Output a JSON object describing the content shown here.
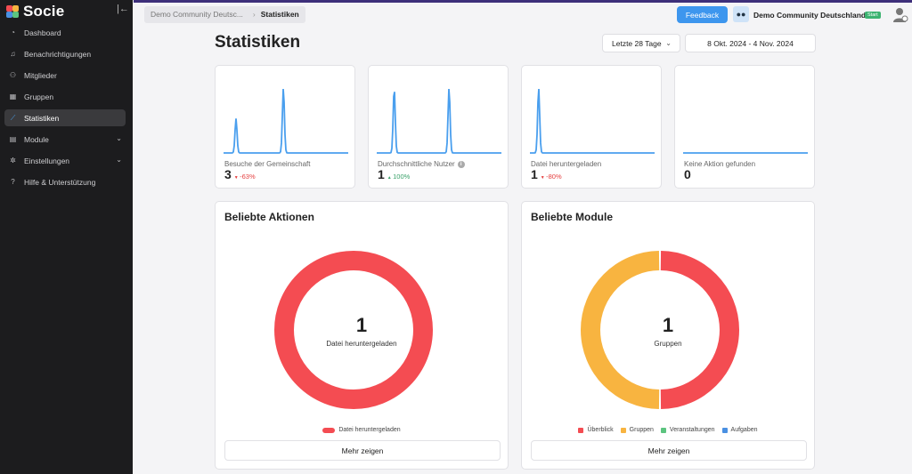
{
  "sidebar": {
    "app_name": "Socie",
    "items": [
      {
        "label": "Dashboard",
        "icon": "dashboard-icon",
        "active": false
      },
      {
        "label": "Benachrichtigungen",
        "icon": "bell-icon",
        "active": false
      },
      {
        "label": "Mitglieder",
        "icon": "users-icon",
        "active": false
      },
      {
        "label": "Gruppen",
        "icon": "groups-icon",
        "active": false
      },
      {
        "label": "Statistiken",
        "icon": "chart-icon",
        "active": true
      },
      {
        "label": "Module",
        "icon": "module-icon",
        "active": false,
        "expandable": true
      },
      {
        "label": "Einstellungen",
        "icon": "gear-icon",
        "active": false,
        "expandable": true
      },
      {
        "label": "Hilfe & Unterstützung",
        "icon": "help-icon",
        "active": false
      }
    ]
  },
  "header": {
    "breadcrumb": [
      "Demo Community Deutsc...",
      "Statistiken"
    ],
    "feedback_label": "Feedback",
    "community_name": "Demo Community Deutschland",
    "plan_badge": "Start"
  },
  "page": {
    "title": "Statistiken",
    "range_select": "Letzte 28 Tage",
    "date_range": "8 Okt. 2024 - 4 Nov. 2024"
  },
  "stats": [
    {
      "label": "Besuche der Gemeinschaft",
      "value": "3",
      "change": "-63%",
      "direction": "down",
      "info": false,
      "peaks": [
        {
          "pos": 0.1,
          "height": 0.45
        },
        {
          "pos": 0.48,
          "height": 0.85
        }
      ]
    },
    {
      "label": "Durchschnittliche Nutzer",
      "value": "1",
      "change": "100%",
      "direction": "up",
      "info": true,
      "peaks": [
        {
          "pos": 0.14,
          "height": 0.85
        },
        {
          "pos": 0.58,
          "height": 0.85
        }
      ]
    },
    {
      "label": "Datei heruntergeladen",
      "value": "1",
      "change": "-80%",
      "direction": "down",
      "info": false,
      "peaks": [
        {
          "pos": 0.07,
          "height": 0.85
        }
      ]
    },
    {
      "label": "Keine Aktion gefunden",
      "value": "0",
      "change": "",
      "direction": "none",
      "info": false,
      "peaks": []
    }
  ],
  "popular_actions": {
    "title": "Beliebte Aktionen",
    "center_value": "1",
    "center_label": "Datei heruntergeladen",
    "slices": [
      {
        "name": "Datei heruntergeladen",
        "value": 1,
        "color": "#f44c52"
      }
    ],
    "legend": [
      {
        "name": "Datei heruntergeladen",
        "color": "#f44c52"
      }
    ],
    "more_label": "Mehr zeigen"
  },
  "popular_modules": {
    "title": "Beliebte Module",
    "center_value": "1",
    "center_label": "Gruppen",
    "slices": [
      {
        "name": "Überblick",
        "value": 1,
        "color": "#f44c52"
      },
      {
        "name": "Gruppen",
        "value": 1,
        "color": "#f8b440"
      }
    ],
    "legend": [
      {
        "name": "Überblick",
        "color": "#f44c52"
      },
      {
        "name": "Gruppen",
        "color": "#f8b440"
      },
      {
        "name": "Veranstaltungen",
        "color": "#5cc47f"
      },
      {
        "name": "Aufgaben",
        "color": "#4a90e2"
      }
    ],
    "more_label": "Mehr zeigen"
  },
  "colors": {
    "accent": "#3d96ee",
    "spark": "#4a9fee",
    "sidebar_bg": "#1c1c1e"
  }
}
